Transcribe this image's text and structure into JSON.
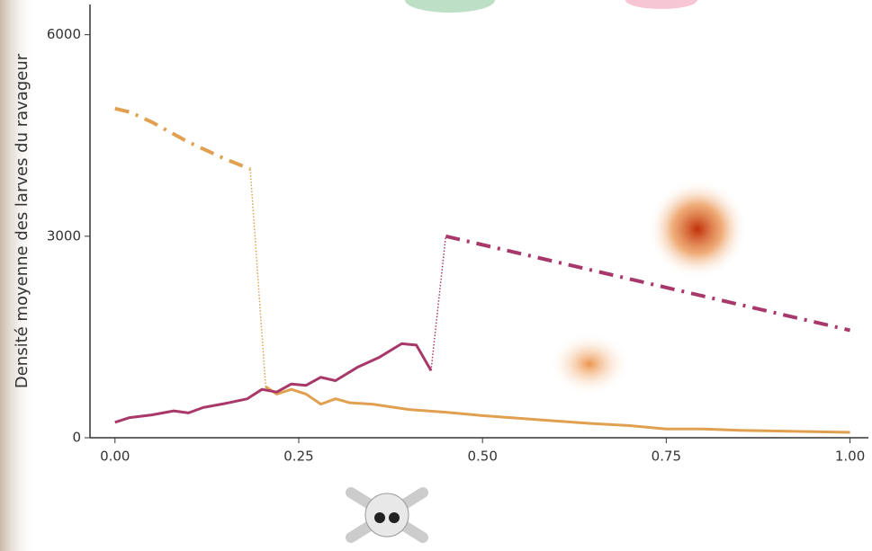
{
  "chart_data": {
    "type": "line",
    "ylabel": "Densité moyenne des larves du ravageur",
    "xlim": [
      -0.034,
      1.025
    ],
    "ylim": [
      0,
      6450
    ],
    "xticks": [
      {
        "value": 0,
        "label": "0.00"
      },
      {
        "value": 0.25,
        "label": "0.25"
      },
      {
        "value": 0.5,
        "label": "0.50"
      },
      {
        "value": 0.75,
        "label": "0.75"
      },
      {
        "value": 1,
        "label": "1.00"
      }
    ],
    "yticks": [
      0,
      3000,
      6000
    ],
    "series": [
      {
        "color": "#e0a050",
        "dash": "dashdot",
        "x": [
          0,
          0.02,
          0.05,
          0.1,
          0.15,
          0.184
        ],
        "values": [
          4900,
          4850,
          4700,
          4400,
          4150,
          4000
        ]
      },
      {
        "color": "#e0a050",
        "dash": "dotted",
        "x": [
          0.184,
          0.205
        ],
        "values": [
          4000,
          760
        ]
      },
      {
        "color": "#e0a050",
        "dash": "solid",
        "x": [
          0.205,
          0.22,
          0.24,
          0.26,
          0.28,
          0.3,
          0.32,
          0.35,
          0.4,
          0.45,
          0.5,
          0.55,
          0.6,
          0.65,
          0.7,
          0.75,
          0.8,
          0.85,
          0.9,
          0.95,
          1
        ],
        "values": [
          760,
          650,
          720,
          650,
          500,
          580,
          520,
          500,
          420,
          380,
          330,
          290,
          250,
          210,
          180,
          130,
          130,
          110,
          100,
          90,
          80
        ]
      },
      {
        "color": "#a8386a",
        "dash": "solid",
        "x": [
          0,
          0.02,
          0.05,
          0.08,
          0.1,
          0.12,
          0.15,
          0.18,
          0.2,
          0.22,
          0.24,
          0.26,
          0.28,
          0.3,
          0.33,
          0.36,
          0.39,
          0.41,
          0.43
        ],
        "values": [
          230,
          300,
          340,
          400,
          370,
          450,
          510,
          580,
          720,
          680,
          800,
          780,
          900,
          850,
          1050,
          1200,
          1400,
          1380,
          1000
        ]
      },
      {
        "color": "#a8386a",
        "dash": "dotted",
        "x": [
          0.43,
          0.45
        ],
        "values": [
          1000,
          3000
        ]
      },
      {
        "color": "#a8386a",
        "dash": "dashdot",
        "x": [
          0.45,
          1
        ],
        "values": [
          3000,
          1600
        ]
      }
    ]
  }
}
